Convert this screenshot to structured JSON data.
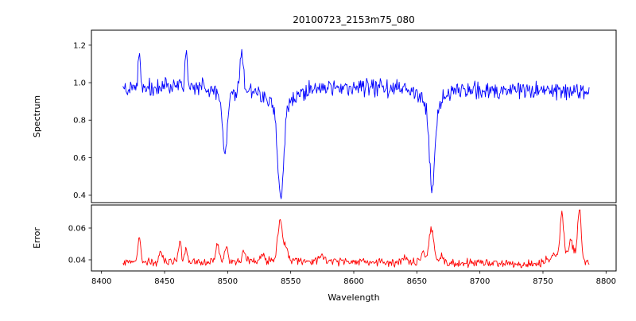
{
  "title": "20100723_2153m75_080",
  "x_axis": {
    "label": "Wavelength",
    "lim": [
      8392,
      8808
    ],
    "tick_values": [
      8400,
      8450,
      8500,
      8550,
      8600,
      8650,
      8700,
      8750,
      8800
    ],
    "tick_labels": [
      "8400",
      "8450",
      "8500",
      "8550",
      "8600",
      "8650",
      "8700",
      "8750",
      "8800"
    ]
  },
  "chart_data": [
    {
      "type": "line",
      "name": "spectrum",
      "ylabel": "Spectrum",
      "color": "#0000ff",
      "ylim": [
        0.36,
        1.28
      ],
      "ytick_values": [
        0.4,
        0.6,
        0.8,
        1.0,
        1.2
      ],
      "ytick_labels": [
        "0.4",
        "0.6",
        "0.8",
        "1.0",
        "1.2"
      ],
      "x_start": 8417,
      "x_end": 8787,
      "x_step": 0.6,
      "noise_amp": 0.028,
      "seed": 20100723,
      "baseline": [
        [
          8417,
          0.97
        ],
        [
          8450,
          0.975
        ],
        [
          8530,
          0.975
        ],
        [
          8600,
          0.975
        ],
        [
          8700,
          0.962
        ],
        [
          8787,
          0.955
        ]
      ],
      "absorption_lines": [
        {
          "center": 8498.0,
          "depth": 0.3,
          "width": 1.8
        },
        {
          "center": 8498.0,
          "depth": 0.06,
          "width": 6.0
        },
        {
          "center": 8542.1,
          "depth": 0.5,
          "width": 2.2
        },
        {
          "center": 8542.1,
          "depth": 0.1,
          "width": 12.0
        },
        {
          "center": 8662.1,
          "depth": 0.46,
          "width": 2.2
        },
        {
          "center": 8662.1,
          "depth": 0.08,
          "width": 9.0
        }
      ],
      "emission_spikes": [
        {
          "center": 8430.0,
          "height": 0.18,
          "width": 0.9
        },
        {
          "center": 8467.0,
          "height": 0.21,
          "width": 0.9
        },
        {
          "center": 8511.0,
          "height": 0.19,
          "width": 1.4
        }
      ]
    },
    {
      "type": "line",
      "name": "error",
      "ylabel": "Error",
      "color": "#ff0000",
      "ylim": [
        0.033,
        0.0745
      ],
      "ytick_values": [
        0.04,
        0.06
      ],
      "ytick_labels": [
        "0.04",
        "0.06"
      ],
      "x_start": 8417,
      "x_end": 8787,
      "x_step": 0.6,
      "noise_amp": 0.0016,
      "seed": 2153075,
      "baseline": [
        [
          8417,
          0.0385
        ],
        [
          8500,
          0.039
        ],
        [
          8560,
          0.0395
        ],
        [
          8620,
          0.0385
        ],
        [
          8700,
          0.038
        ],
        [
          8745,
          0.0375
        ],
        [
          8756,
          0.041
        ],
        [
          8764,
          0.0445
        ],
        [
          8771,
          0.0445
        ],
        [
          8777,
          0.046
        ],
        [
          8782,
          0.04
        ],
        [
          8787,
          0.0365
        ]
      ],
      "peaks": [
        {
          "center": 8430.0,
          "height": 0.014,
          "width": 1.2
        },
        {
          "center": 8447.0,
          "height": 0.007,
          "width": 1.0
        },
        {
          "center": 8462.0,
          "height": 0.012,
          "width": 1.2
        },
        {
          "center": 8467.0,
          "height": 0.01,
          "width": 1.0
        },
        {
          "center": 8492.0,
          "height": 0.011,
          "width": 1.4
        },
        {
          "center": 8499.0,
          "height": 0.009,
          "width": 1.2
        },
        {
          "center": 8513.0,
          "height": 0.007,
          "width": 1.4
        },
        {
          "center": 8528.0,
          "height": 0.004,
          "width": 1.5
        },
        {
          "center": 8541.5,
          "height": 0.025,
          "width": 1.8
        },
        {
          "center": 8546.0,
          "height": 0.008,
          "width": 1.5
        },
        {
          "center": 8575.0,
          "height": 0.003,
          "width": 2.0
        },
        {
          "center": 8640.0,
          "height": 0.003,
          "width": 2.0
        },
        {
          "center": 8655.0,
          "height": 0.006,
          "width": 1.5
        },
        {
          "center": 8661.5,
          "height": 0.021,
          "width": 2.0
        },
        {
          "center": 8670.0,
          "height": 0.005,
          "width": 1.5
        },
        {
          "center": 8765.0,
          "height": 0.026,
          "width": 1.3
        },
        {
          "center": 8772.0,
          "height": 0.008,
          "width": 1.0
        },
        {
          "center": 8779.0,
          "height": 0.03,
          "width": 1.2
        }
      ]
    }
  ]
}
